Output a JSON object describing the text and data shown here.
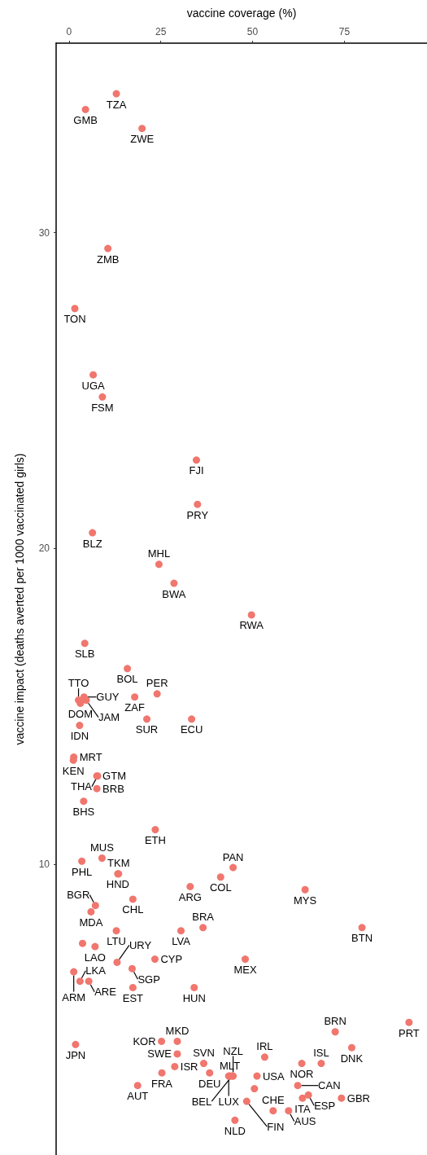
{
  "chart_data": {
    "type": "scatter",
    "xlabel": "vaccine coverage (%)",
    "ylabel": "vaccine impact (deaths averted per 1000 vaccinated girls)",
    "xlim": [
      -3.5,
      97.5
    ],
    "ylim": [
      0.8,
      36
    ],
    "xticks": [
      0,
      25,
      50,
      75
    ],
    "yticks": [
      10,
      20,
      30
    ],
    "marker": "circle",
    "series": [
      {
        "color": "#f0766e",
        "x": [
          12.9,
          4.5,
          19.9,
          10.6,
          1.6,
          6.6,
          9.1,
          34.7,
          35.0,
          6.4,
          24.5,
          28.6,
          49.7,
          4.3,
          15.9,
          2.6,
          3.1,
          4.1,
          4.7,
          17.9,
          24.0,
          21.2,
          33.4,
          2.9,
          1.3,
          1.2,
          7.6,
          7.8,
          7.6,
          4.0,
          23.5,
          9.0,
          3.5,
          13.3,
          13.5,
          44.7,
          41.3,
          33.0,
          64.3,
          17.4,
          7.2,
          6.0,
          12.9,
          3.7,
          7.1,
          13.1,
          17.2,
          17.4,
          1.3,
          3.0,
          5.4,
          23.4,
          30.5,
          36.5,
          79.8,
          48.0,
          34.1,
          29.5,
          25.2,
          1.8,
          29.5,
          28.8,
          25.3,
          36.7,
          38.3,
          18.7,
          43.8,
          44.7,
          44.4,
          43.5,
          51.2,
          50.5,
          48.4,
          45.2,
          55.6,
          53.3,
          63.4,
          68.7,
          62.3,
          63.6,
          65.2,
          59.8,
          74.2,
          72.5,
          77.0,
          92.6
        ],
        "values": [
          34.4,
          33.9,
          33.3,
          29.5,
          27.6,
          25.5,
          24.8,
          22.8,
          21.4,
          20.5,
          19.5,
          18.9,
          17.9,
          17.0,
          16.2,
          15.2,
          15.1,
          15.3,
          15.2,
          15.3,
          15.4,
          14.6,
          14.6,
          14.4,
          13.4,
          13.3,
          12.8,
          12.8,
          12.4,
          12.0,
          11.1,
          10.2,
          10.1,
          9.7,
          9.7,
          9.9,
          9.6,
          9.3,
          9.2,
          8.9,
          8.7,
          8.5,
          7.9,
          7.5,
          7.4,
          6.9,
          6.7,
          6.1,
          6.6,
          6.3,
          6.3,
          7.0,
          7.9,
          8.0,
          8.0,
          7.0,
          6.1,
          4.4,
          4.4,
          4.3,
          4.0,
          3.6,
          3.4,
          3.7,
          3.4,
          3.0,
          3.3,
          3.3,
          3.3,
          3.3,
          3.3,
          2.9,
          2.5,
          1.9,
          2.2,
          3.9,
          3.7,
          3.7,
          3.0,
          2.6,
          2.7,
          2.2,
          2.6,
          4.7,
          4.2,
          5.0
        ],
        "value_labels": [
          "TZA",
          "GMB",
          "ZWE",
          "ZMB",
          "TON",
          "UGA",
          "FSM",
          "FJI",
          "PRY",
          "BLZ",
          "MHL",
          "BWA",
          "RWA",
          "SLB",
          "BOL",
          "TTO",
          "DOM",
          "GUY",
          "JAM",
          "ZAF",
          "PER",
          "SUR",
          "ECU",
          "IDN",
          "MRT",
          "KEN",
          "GTM",
          "THA",
          "BRB",
          "BHS",
          "ETH",
          "MUS",
          "PHL",
          "HND",
          "TKM",
          "PAN",
          "COL",
          "ARG",
          "MYS",
          "CHL",
          "BGR",
          "MDA",
          "LTU",
          null,
          "LAO",
          "URY",
          "SGP",
          "EST",
          "ARM",
          "LKA",
          "ARE",
          "CYP",
          "LVA",
          "BRA",
          "BTN",
          "MEX",
          "HUN",
          "MKD",
          "KOR",
          "JPN",
          "SWE",
          "ISR",
          "FRA",
          "SVN",
          "DEU",
          "AUT",
          "MLT",
          "NZL",
          "BEL",
          "LUX",
          "USA",
          null,
          "FIN",
          "NLD",
          "CHE",
          "IRL",
          "NOR",
          "ISL",
          "CAN",
          "ITA",
          "ESP",
          "AUS",
          "GBR",
          "BRN",
          "DNK",
          "PRT"
        ]
      }
    ]
  }
}
